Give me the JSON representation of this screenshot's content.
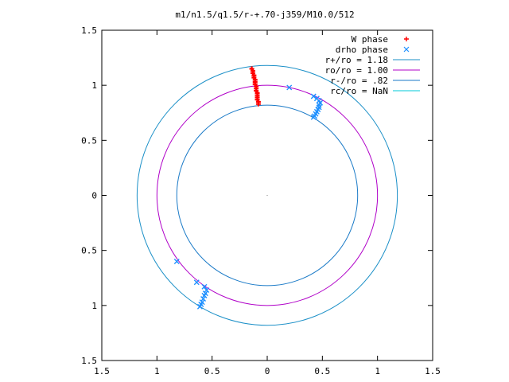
{
  "chart_data": {
    "type": "scatter",
    "title": "m1/n1.5/q1.5/r-+.70-j359/M10.0/512",
    "xlim": [
      -1.5,
      1.5
    ],
    "ylim": [
      -1.5,
      1.5
    ],
    "x_ticks": [
      -1.5,
      -1,
      -0.5,
      0,
      0.5,
      1,
      1.5
    ],
    "y_ticks": [
      -1.5,
      -1,
      -0.5,
      0,
      0.5,
      1,
      1.5
    ],
    "x_tick_labels": [
      "1.5",
      "1",
      "0.5",
      "0",
      "0.5",
      "1",
      "1.5"
    ],
    "y_tick_labels": [
      "1.5",
      "1",
      "0.5",
      "0",
      "0.5",
      "1",
      "1.5"
    ],
    "legend_placement": "top-right",
    "grid": false,
    "series": [
      {
        "name": "W phase",
        "marker": "+",
        "color": "#ff0000",
        "points": [
          [
            -0.14,
            1.15
          ],
          [
            -0.13,
            1.13
          ],
          [
            -0.13,
            1.11
          ],
          [
            -0.12,
            1.09
          ],
          [
            -0.12,
            1.07
          ],
          [
            -0.11,
            1.05
          ],
          [
            -0.11,
            1.03
          ],
          [
            -0.11,
            1.01
          ],
          [
            -0.1,
            0.99
          ],
          [
            -0.1,
            0.97
          ],
          [
            -0.1,
            0.95
          ],
          [
            -0.09,
            0.93
          ],
          [
            -0.09,
            0.91
          ],
          [
            -0.09,
            0.89
          ],
          [
            -0.09,
            0.87
          ],
          [
            -0.08,
            0.85
          ],
          [
            -0.08,
            0.83
          ]
        ]
      },
      {
        "name": "drho phase",
        "marker": "x",
        "color": "#1e90ff",
        "points": [
          [
            0.2,
            0.98
          ],
          [
            0.42,
            0.9
          ],
          [
            0.45,
            0.88
          ],
          [
            0.47,
            0.86
          ],
          [
            0.48,
            0.84
          ],
          [
            0.47,
            0.82
          ],
          [
            0.47,
            0.8
          ],
          [
            0.46,
            0.78
          ],
          [
            0.45,
            0.76
          ],
          [
            0.44,
            0.74
          ],
          [
            0.43,
            0.72
          ],
          [
            0.42,
            0.71
          ],
          [
            -0.82,
            -0.6
          ],
          [
            -0.64,
            -0.79
          ],
          [
            -0.57,
            -0.83
          ],
          [
            -0.55,
            -0.86
          ],
          [
            -0.56,
            -0.89
          ],
          [
            -0.57,
            -0.91
          ],
          [
            -0.58,
            -0.94
          ],
          [
            -0.59,
            -0.97
          ],
          [
            -0.6,
            -0.99
          ],
          [
            -0.61,
            -1.01
          ]
        ]
      }
    ],
    "circles": [
      {
        "name": "r+/ro = 1.18",
        "radius": 1.18,
        "color": "#1a8fc7"
      },
      {
        "name": "ro/ro = 1.00",
        "radius": 1.0,
        "color": "#b000c8"
      },
      {
        "name": "r-/ro = .82",
        "radius": 0.82,
        "color": "#1a7ac7"
      },
      {
        "name": "rc/ro = NaN",
        "radius": null,
        "color": "#00c8d8"
      }
    ]
  }
}
